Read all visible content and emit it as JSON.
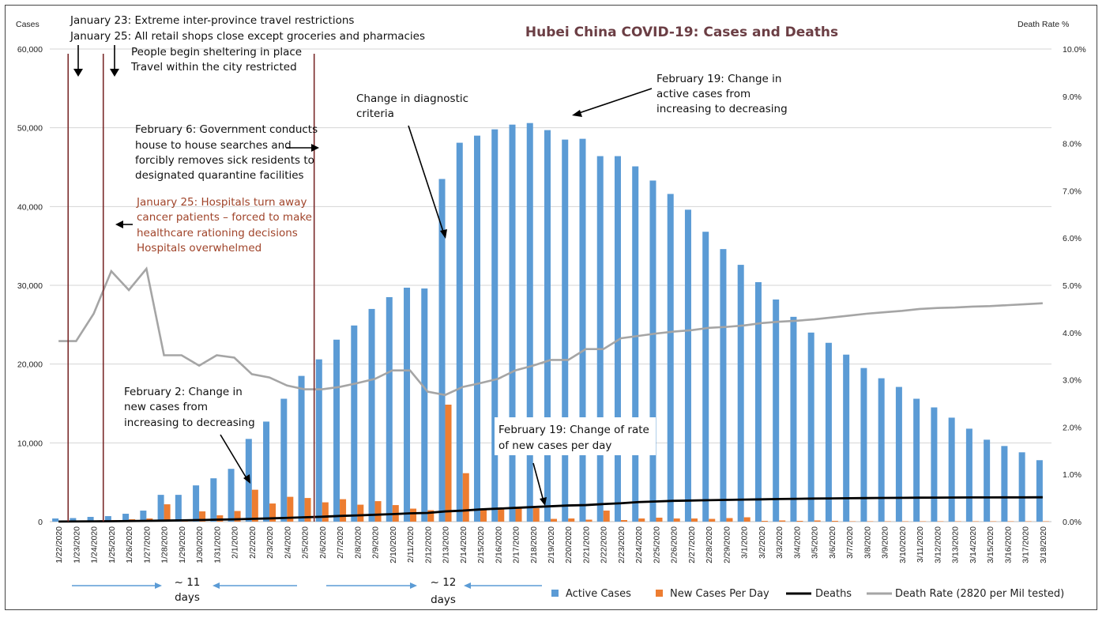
{
  "chart_data": {
    "type": "bar",
    "title": "Hubei China COVID-19: Cases and Deaths",
    "ylabel": "Cases",
    "y2label": "Death Rate %",
    "ylim": [
      0,
      60000
    ],
    "y2lim": [
      0,
      10
    ],
    "yticks": [
      "0",
      "10,000",
      "20,000",
      "30,000",
      "40,000",
      "50,000",
      "60,000"
    ],
    "y2ticks": [
      "0.0%",
      "1.0%",
      "2.0%",
      "3.0%",
      "4.0%",
      "5.0%",
      "6.0%",
      "7.0%",
      "8.0%",
      "9.0%",
      "10.0%"
    ],
    "grid": true,
    "legend_position": "bottom-right",
    "categories": [
      "1/22/2020",
      "1/23/2020",
      "1/24/2020",
      "1/25/2020",
      "1/26/2020",
      "1/27/2020",
      "1/28/2020",
      "1/29/2020",
      "1/30/2020",
      "1/31/2020",
      "2/1/2020",
      "2/2/2020",
      "2/3/2020",
      "2/4/2020",
      "2/5/2020",
      "2/6/2020",
      "2/7/2020",
      "2/8/2020",
      "2/9/2020",
      "2/10/2020",
      "2/11/2020",
      "2/12/2020",
      "2/13/2020",
      "2/14/2020",
      "2/15/2020",
      "2/16/2020",
      "2/17/2020",
      "2/18/2020",
      "2/19/2020",
      "2/20/2020",
      "2/21/2020",
      "2/22/2020",
      "2/23/2020",
      "2/24/2020",
      "2/25/2020",
      "2/26/2020",
      "2/27/2020",
      "2/28/2020",
      "2/29/2020",
      "3/1/2020",
      "3/2/2020",
      "3/3/2020",
      "3/4/2020",
      "3/5/2020",
      "3/6/2020",
      "3/7/2020",
      "3/8/2020",
      "3/9/2020",
      "3/10/2020",
      "3/11/2020",
      "3/12/2020",
      "3/13/2020",
      "3/14/2020",
      "3/15/2020",
      "3/16/2020",
      "3/17/2020",
      "3/18/2020"
    ],
    "series": [
      {
        "name": "Active Cases",
        "color": "#5b9bd5",
        "type": "bar",
        "axis": "left",
        "values": [
          400,
          450,
          600,
          700,
          1000,
          1400,
          3400,
          3400,
          4600,
          5500,
          6700,
          10500,
          12700,
          15600,
          18500,
          20600,
          23100,
          24900,
          27000,
          28500,
          29700,
          29600,
          43500,
          48100,
          49000,
          49800,
          50400,
          50600,
          49700,
          48500,
          48600,
          46400,
          46400,
          45100,
          43300,
          41600,
          39600,
          36800,
          34600,
          32600,
          30400,
          28200,
          26000,
          24000,
          22700,
          21200,
          19500,
          18200,
          17100,
          15600,
          14500,
          13200,
          11800,
          10400,
          9600,
          8800,
          7800
        ]
      },
      {
        "name": "New Cases Per Day",
        "color": "#ed7d31",
        "type": "bar",
        "axis": "left",
        "values": [
          0,
          150,
          100,
          200,
          300,
          400,
          2200,
          100,
          1300,
          800,
          1350,
          4050,
          2300,
          3150,
          3000,
          2450,
          2850,
          2150,
          2600,
          2100,
          1650,
          1450,
          14850,
          6150,
          1650,
          1700,
          1750,
          1700,
          350,
          400,
          250,
          1400,
          200,
          400,
          500,
          400,
          400,
          350,
          450,
          550,
          100,
          150,
          100,
          150,
          100,
          50,
          50,
          50,
          50,
          50,
          50,
          50,
          50,
          50,
          50,
          50,
          50
        ]
      },
      {
        "name": "Deaths",
        "color": "#000000",
        "type": "line",
        "axis": "left",
        "values": [
          15,
          25,
          40,
          50,
          75,
          100,
          130,
          160,
          200,
          250,
          290,
          350,
          410,
          480,
          550,
          620,
          720,
          790,
          870,
          950,
          1050,
          1100,
          1300,
          1400,
          1550,
          1650,
          1750,
          1850,
          1950,
          2050,
          2100,
          2230,
          2330,
          2480,
          2560,
          2640,
          2680,
          2720,
          2760,
          2800,
          2830,
          2870,
          2900,
          2930,
          2950,
          2970,
          2990,
          3010,
          3020,
          3040,
          3050,
          3060,
          3070,
          3070,
          3080,
          3080,
          3090
        ]
      },
      {
        "name": "Death Rate (2820 per Mil tested)",
        "color": "#a5a5a5",
        "type": "line",
        "axis": "right",
        "values": [
          3.82,
          3.82,
          4.4,
          5.3,
          4.9,
          5.35,
          3.52,
          3.52,
          3.3,
          3.52,
          3.47,
          3.12,
          3.05,
          2.88,
          2.8,
          2.8,
          2.85,
          2.93,
          3.02,
          3.2,
          3.2,
          2.75,
          2.68,
          2.85,
          2.93,
          3.02,
          3.2,
          3.3,
          3.42,
          3.42,
          3.65,
          3.65,
          3.88,
          3.93,
          3.98,
          4.02,
          4.05,
          4.1,
          4.12,
          4.15,
          4.2,
          4.23,
          4.25,
          4.28,
          4.32,
          4.36,
          4.4,
          4.43,
          4.46,
          4.5,
          4.52,
          4.53,
          4.55,
          4.56,
          4.58,
          4.6,
          4.62
        ]
      }
    ],
    "annotations": {
      "a1": [
        "January 23: Extreme inter-province travel restrictions",
        "January 25: All retail shops close except groceries and pharmacies",
        "People begin sheltering in place",
        "Travel within the city restricted"
      ],
      "a2": [
        "February 6: Government conducts",
        "house to house searches and",
        "forcibly removes sick residents to",
        "designated quarantine facilities"
      ],
      "a3": [
        "January 25: Hospitals turn away",
        "cancer patients – forced to make",
        "healthcare rationing decisions",
        "Hospitals overwhelmed"
      ],
      "a4": [
        "Change in diagnostic",
        "criteria"
      ],
      "a5": [
        "February 19: Change in",
        "active cases from",
        "increasing to decreasing"
      ],
      "a6": [
        "February 2: Change in",
        "new cases from",
        "increasing to decreasing"
      ],
      "a7": [
        "February 19: Change of rate",
        "of  new cases per day"
      ],
      "gap1": [
        "~ 11",
        "days"
      ],
      "gap2": [
        "~ 12",
        "days"
      ]
    },
    "colors": {
      "annotation_red": "#a0442a",
      "event_line": "#7a2a2a",
      "gap_arrow": "#5b9bd5",
      "title": "#6b3e44"
    }
  }
}
